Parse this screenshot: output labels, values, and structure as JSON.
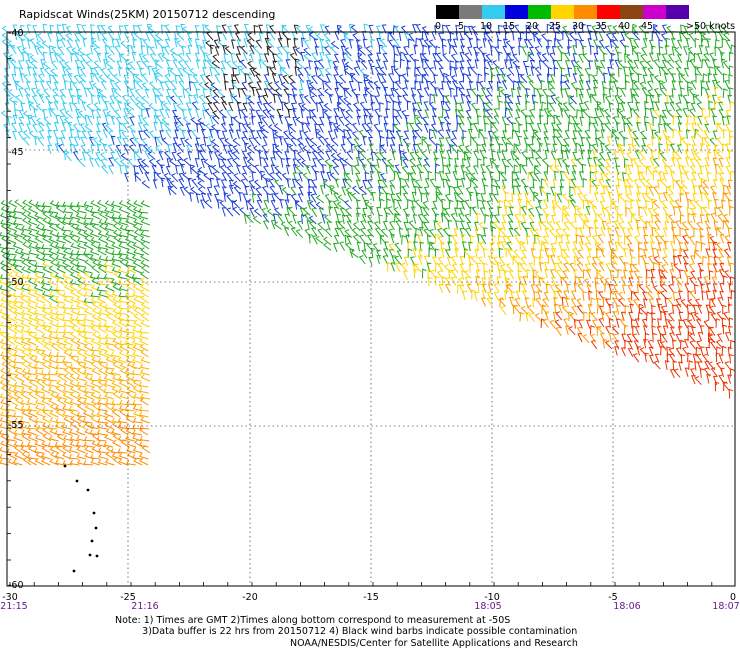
{
  "title": "Rapidscat Winds(25KM) 20150712 descending",
  "legend": {
    "labels": [
      "0",
      "5",
      "10",
      "15",
      "20",
      "25",
      "30",
      "35",
      "40",
      "45",
      ">50 knots"
    ],
    "colors": [
      "#000000",
      "#7a7a7a",
      "#33ccee",
      "#0000dd",
      "#00bb00",
      "#ffd400",
      "#ff8c00",
      "#ff0000",
      "#8b4513",
      "#cc00cc",
      "#5500aa"
    ]
  },
  "axes": {
    "lon_labels": [
      "-30",
      "-25",
      "-20",
      "-15",
      "-10",
      "-5",
      "0"
    ],
    "lat_labels": [
      "-40",
      "-45",
      "-50",
      "-55",
      "-60"
    ]
  },
  "times": [
    {
      "label": "21:15"
    },
    {
      "label": "21:16"
    },
    {
      "label": "18:05"
    },
    {
      "label": "18:06"
    },
    {
      "label": "18:07"
    }
  ],
  "notes": "Note: 1) Times are GMT 2)Times along bottom correspond to measurement at -50S\n         3)Data buffer is 22 hrs from 20150712 4) Black wind barbs indicate possible contamination",
  "credit": "NOAA/NESDIS/Center for Satellite Applications and Research"
}
